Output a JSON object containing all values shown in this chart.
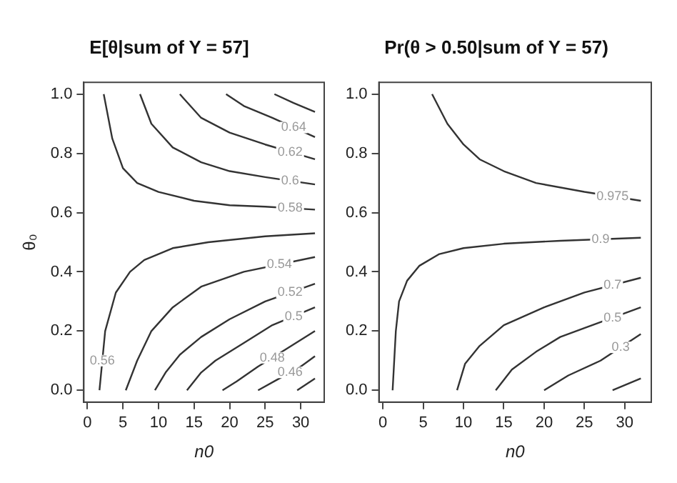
{
  "chart_data": [
    {
      "type": "line",
      "title": "E[θ|sum of Y = 57]",
      "xlabel": "n0",
      "ylabel": "θ₀",
      "xlim": [
        -0.5,
        33.3
      ],
      "ylim": [
        -0.04,
        1.04
      ],
      "xticks": [
        0,
        5,
        10,
        15,
        20,
        25,
        30
      ],
      "yticks": [
        {
          "value": 0,
          "label": "0.0"
        },
        {
          "value": 0.2,
          "label": "0.2"
        },
        {
          "value": 0.4,
          "label": "0.4"
        },
        {
          "value": 0.6,
          "label": "0.6"
        },
        {
          "value": 0.8,
          "label": "0.8"
        },
        {
          "value": 1,
          "label": "1.0"
        }
      ],
      "grid": false,
      "legend": false,
      "marker": "none",
      "line_style": "solid",
      "series": [
        {
          "color": "#333333",
          "x": [
            26.3,
            29,
            32
          ],
          "values": [
            1.0,
            0.97,
            0.94
          ]
        },
        {
          "name": "0.64",
          "color": "#333333",
          "x": [
            19.5,
            22,
            26,
            32
          ],
          "values": [
            1.0,
            0.96,
            0.92,
            0.855
          ]
        },
        {
          "name": "0.62",
          "color": "#333333",
          "x": [
            13,
            16,
            20,
            25,
            32
          ],
          "values": [
            1.0,
            0.92,
            0.87,
            0.83,
            0.78
          ]
        },
        {
          "name": "0.6",
          "color": "#333333",
          "x": [
            7.4,
            9,
            12,
            16,
            20,
            25,
            32
          ],
          "values": [
            1.0,
            0.9,
            0.82,
            0.77,
            0.74,
            0.72,
            0.695
          ]
        },
        {
          "name": "0.58",
          "color": "#333333",
          "x": [
            2.3,
            3.5,
            5,
            7,
            10,
            15,
            20,
            25,
            32
          ],
          "values": [
            1.0,
            0.85,
            0.75,
            0.7,
            0.67,
            0.64,
            0.625,
            0.62,
            0.61
          ]
        },
        {
          "name": "0.56",
          "color": "#333333",
          "x": [
            1.7,
            2.5,
            4,
            6,
            8,
            12,
            17,
            25,
            32
          ],
          "values": [
            0,
            0.2,
            0.33,
            0.4,
            0.44,
            0.48,
            0.5,
            0.52,
            0.53
          ]
        },
        {
          "name": "0.54",
          "color": "#333333",
          "x": [
            5.4,
            7,
            9,
            12,
            16,
            22,
            32
          ],
          "values": [
            0,
            0.1,
            0.2,
            0.28,
            0.35,
            0.4,
            0.45
          ]
        },
        {
          "name": "0.52",
          "color": "#333333",
          "x": [
            9.5,
            11,
            13,
            16,
            20,
            25,
            32
          ],
          "values": [
            0,
            0.06,
            0.12,
            0.18,
            0.24,
            0.3,
            0.36
          ]
        },
        {
          "name": "0.5",
          "color": "#333333",
          "x": [
            14,
            16,
            18,
            22,
            26,
            32
          ],
          "values": [
            0,
            0.06,
            0.1,
            0.16,
            0.22,
            0.28
          ]
        },
        {
          "name": "0.48",
          "color": "#333333",
          "x": [
            19,
            21,
            24,
            28,
            32
          ],
          "values": [
            0,
            0.03,
            0.08,
            0.14,
            0.2
          ]
        },
        {
          "name": "0.46",
          "color": "#333333",
          "x": [
            24,
            27,
            30,
            32
          ],
          "values": [
            0,
            0.04,
            0.08,
            0.115
          ]
        },
        {
          "color": "#333333",
          "x": [
            29.5,
            32
          ],
          "values": [
            0,
            0.04
          ]
        }
      ]
    },
    {
      "type": "line",
      "title": "Pr(θ > 0.50|sum of Y = 57)",
      "xlabel": "n0",
      "xlim": [
        -0.5,
        33.3
      ],
      "ylim": [
        -0.04,
        1.04
      ],
      "xticks": [
        0,
        5,
        10,
        15,
        20,
        25,
        30
      ],
      "yticks": [
        {
          "value": 0,
          "label": "0.0"
        },
        {
          "value": 0.2,
          "label": "0.2"
        },
        {
          "value": 0.4,
          "label": "0.4"
        },
        {
          "value": 0.6,
          "label": "0.6"
        },
        {
          "value": 0.8,
          "label": "0.8"
        },
        {
          "value": 1,
          "label": "1.0"
        }
      ],
      "grid": false,
      "legend": false,
      "marker": "none",
      "line_style": "solid",
      "series": [
        {
          "name": "0.975",
          "color": "#333333",
          "x": [
            6.1,
            8,
            10,
            12,
            15,
            19,
            25,
            32
          ],
          "values": [
            1.0,
            0.9,
            0.83,
            0.78,
            0.74,
            0.7,
            0.67,
            0.64
          ]
        },
        {
          "name": "0.9",
          "color": "#333333",
          "x": [
            1.2,
            1.6,
            2,
            3,
            4.5,
            7,
            10,
            15,
            22,
            32
          ],
          "values": [
            0,
            0.2,
            0.3,
            0.37,
            0.42,
            0.46,
            0.48,
            0.495,
            0.505,
            0.515
          ]
        },
        {
          "name": "0.7",
          "color": "#333333",
          "x": [
            9.2,
            10.2,
            12,
            15,
            20,
            25,
            32
          ],
          "values": [
            0,
            0.09,
            0.15,
            0.22,
            0.28,
            0.33,
            0.38
          ]
        },
        {
          "name": "0.5",
          "color": "#333333",
          "x": [
            14,
            16,
            19,
            22,
            25,
            32
          ],
          "values": [
            0,
            0.07,
            0.13,
            0.18,
            0.21,
            0.28
          ]
        },
        {
          "name": "0.3",
          "color": "#333333",
          "x": [
            20,
            23,
            27,
            32
          ],
          "values": [
            0,
            0.05,
            0.1,
            0.19
          ]
        },
        {
          "color": "#333333",
          "x": [
            28.5,
            32
          ],
          "values": [
            0,
            0.04
          ]
        }
      ]
    }
  ]
}
